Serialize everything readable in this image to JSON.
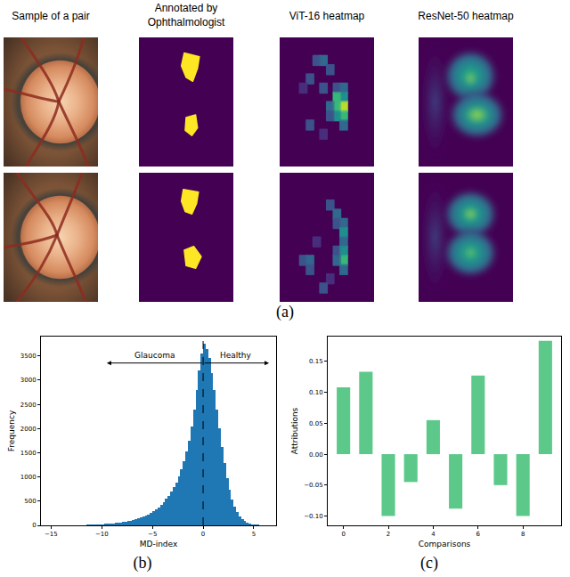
{
  "figure": {
    "panel_labels": [
      "(a)",
      "(b)",
      "(c)"
    ],
    "panel_a": {
      "column_headers": [
        [
          "Sample of a pair"
        ],
        [
          "Annotated by",
          "Ophthalmologist"
        ],
        [
          "ViT-16 heatmap"
        ],
        [
          "ResNet-50 heatmap"
        ]
      ]
    }
  },
  "chart_data": [
    {
      "type": "histogram",
      "x_label": "MD-index",
      "y_label": "Frequency",
      "bins": [
        -15,
        -14.75,
        -14.5,
        -14.25,
        -14,
        -13.75,
        -13.5,
        -13.25,
        -13,
        -12.75,
        -12.5,
        -12.25,
        -12,
        -11.75,
        -11.5,
        -11.25,
        -11,
        -10.75,
        -10.5,
        -10.25,
        -10,
        -9.75,
        -9.5,
        -9.25,
        -9,
        -8.75,
        -8.5,
        -8.25,
        -8,
        -7.75,
        -7.5,
        -7.25,
        -7,
        -6.75,
        -6.5,
        -6.25,
        -6,
        -5.75,
        -5.5,
        -5.25,
        -5,
        -4.75,
        -4.5,
        -4.25,
        -4,
        -3.75,
        -3.5,
        -3.25,
        -3,
        -2.75,
        -2.5,
        -2.25,
        -2,
        -1.75,
        -1.5,
        -1.25,
        -1,
        -0.75,
        -0.5,
        -0.25,
        0,
        0.25,
        0.5,
        0.75,
        1,
        1.25,
        1.5,
        1.75,
        2,
        2.25,
        2.5,
        2.75,
        3,
        3.25,
        3.5,
        3.75,
        4,
        4.25,
        4.5,
        4.75,
        5,
        5.25,
        5.5,
        5.75,
        6
      ],
      "counts": [
        2,
        1,
        2,
        3,
        2,
        3,
        4,
        3,
        5,
        4,
        6,
        7,
        8,
        9,
        10,
        12,
        14,
        16,
        18,
        22,
        26,
        30,
        34,
        38,
        44,
        50,
        56,
        62,
        70,
        78,
        88,
        98,
        110,
        124,
        140,
        158,
        178,
        200,
        225,
        255,
        290,
        330,
        375,
        425,
        480,
        545,
        615,
        700,
        790,
        890,
        1010,
        1150,
        1320,
        1520,
        1750,
        2050,
        2400,
        2800,
        3200,
        3550,
        3750,
        3650,
        3450,
        3150,
        2800,
        2400,
        2000,
        1620,
        1280,
        980,
        730,
        530,
        380,
        270,
        190,
        130,
        90,
        60,
        40,
        26,
        16,
        10,
        6,
        3
      ],
      "color": "#1f77b4",
      "xlim": [
        -16,
        7.2
      ],
      "xticks": [
        {
          "value": -15,
          "label": "−15"
        },
        {
          "value": -10,
          "label": "−10"
        },
        {
          "value": -5,
          "label": "−5"
        },
        0,
        5
      ],
      "ylim": [
        0,
        3900
      ],
      "yticks": [
        0,
        500,
        1000,
        1500,
        2000,
        2500,
        3000,
        3500
      ],
      "reference_line": 0,
      "annotations": [
        "Glaucoma",
        "Healthy"
      ],
      "grid": false
    },
    {
      "type": "bar",
      "x_label": "Comparisons",
      "y_label": "Attributions",
      "x": [
        0,
        1,
        2,
        3,
        4,
        5,
        6,
        7,
        8,
        9
      ],
      "values": [
        0.108,
        0.133,
        -0.1,
        -0.045,
        0.055,
        -0.088,
        0.127,
        -0.05,
        -0.1,
        0.183
      ],
      "color": "#5cc98b",
      "xlim": [
        -0.7,
        9.7
      ],
      "xticks": [
        0,
        2,
        4,
        6,
        8
      ],
      "ylim": [
        -0.115,
        0.19
      ],
      "yticks": [
        {
          "value": -0.1,
          "label": "−0.10"
        },
        {
          "value": -0.05,
          "label": "−0.05"
        },
        {
          "value": 0,
          "label": "0.00"
        },
        {
          "value": 0.05,
          "label": "0.05"
        },
        {
          "value": 0.1,
          "label": "0.10"
        },
        {
          "value": 0.15,
          "label": "0.15"
        }
      ],
      "grid": false
    }
  ]
}
